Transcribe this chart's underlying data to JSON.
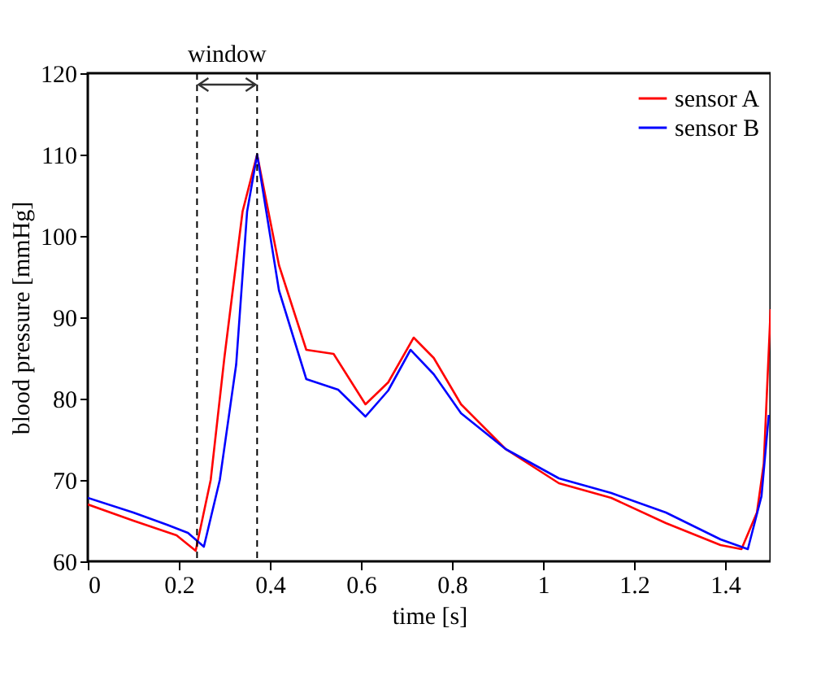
{
  "chart_data": {
    "type": "line",
    "xlabel": "time [s]",
    "ylabel": "blood pressure [mmHg]",
    "xlim": [
      0,
      1.5
    ],
    "xticks": [
      0,
      0.2,
      0.4,
      0.6,
      0.8,
      1,
      1.2,
      1.4
    ],
    "ylim": [
      60,
      120
    ],
    "yticks": [
      60,
      70,
      80,
      90,
      100,
      110,
      120
    ],
    "grid": false,
    "legend": "top right",
    "marker": "none",
    "line_style": "solid",
    "annotations": [
      "window"
    ],
    "ref_lines": [
      {
        "axis": "x",
        "value": 0.24,
        "line_style": "dashed",
        "color": "#000000"
      },
      {
        "axis": "x",
        "value": 0.372,
        "line_style": "dashed",
        "color": "#000000"
      }
    ],
    "series": [
      {
        "name": "sensor A",
        "color": "#ff0000",
        "x": [
          0,
          0.1,
          0.195,
          0.237,
          0.27,
          0.3,
          0.34,
          0.372,
          0.42,
          0.48,
          0.54,
          0.61,
          0.66,
          0.716,
          0.76,
          0.82,
          0.918,
          1.035,
          1.15,
          1.27,
          1.39,
          1.436,
          1.47,
          1.485,
          1.5
        ],
        "values": [
          67.0,
          65.0,
          63.2,
          61.3,
          70,
          85,
          103,
          110,
          96.4,
          86,
          85.5,
          79.3,
          82,
          87.5,
          85,
          79.3,
          73.8,
          69.6,
          67.8,
          64.7,
          62.0,
          61.5,
          66,
          72,
          91
        ]
      },
      {
        "name": "sensor B",
        "color": "#0000ff",
        "x": [
          0,
          0.1,
          0.174,
          0.22,
          0.255,
          0.29,
          0.326,
          0.35,
          0.372,
          0.42,
          0.48,
          0.55,
          0.61,
          0.66,
          0.709,
          0.76,
          0.82,
          0.918,
          1.035,
          1.15,
          1.27,
          1.39,
          1.45,
          1.48,
          1.496
        ],
        "values": [
          67.8,
          66,
          64.5,
          63.5,
          61.8,
          70,
          84.2,
          103,
          110,
          93.3,
          82.4,
          81.1,
          77.8,
          81,
          86,
          83,
          78.2,
          73.8,
          70.2,
          68.4,
          66,
          62.7,
          61.5,
          68,
          78
        ]
      }
    ]
  }
}
